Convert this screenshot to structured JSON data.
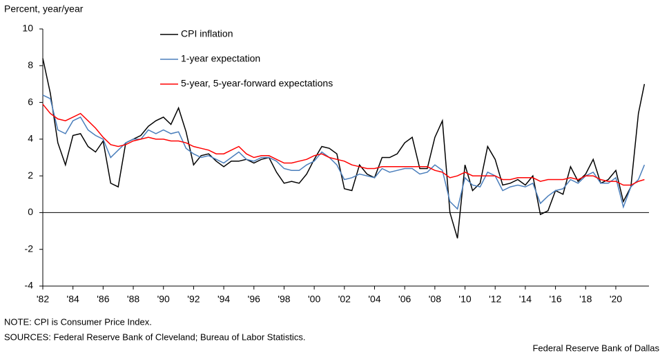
{
  "chart_data": {
    "type": "line",
    "y_label": "Percent, year/year",
    "notes": [
      "NOTE: CPI is Consumer Price Index.",
      "SOURCES: Federal Reserve Bank of Cleveland; Bureau of Labor Statistics."
    ],
    "credit": "Federal Reserve Bank of Dallas",
    "x": [
      1982.0,
      1982.5,
      1983.0,
      1983.5,
      1984.0,
      1984.5,
      1985.0,
      1985.5,
      1986.0,
      1986.5,
      1987.0,
      1987.5,
      1988.0,
      1988.5,
      1989.0,
      1989.5,
      1990.0,
      1990.5,
      1991.0,
      1991.5,
      1992.0,
      1992.5,
      1993.0,
      1993.5,
      1994.0,
      1994.5,
      1995.0,
      1995.5,
      1996.0,
      1996.5,
      1997.0,
      1997.5,
      1998.0,
      1998.5,
      1999.0,
      1999.5,
      2000.0,
      2000.5,
      2001.0,
      2001.5,
      2002.0,
      2002.5,
      2003.0,
      2003.5,
      2004.0,
      2004.5,
      2005.0,
      2005.5,
      2006.0,
      2006.5,
      2007.0,
      2007.5,
      2008.0,
      2008.5,
      2009.0,
      2009.5,
      2010.0,
      2010.5,
      2011.0,
      2011.5,
      2012.0,
      2012.5,
      2013.0,
      2013.5,
      2014.0,
      2014.5,
      2015.0,
      2015.5,
      2016.0,
      2016.5,
      2017.0,
      2017.5,
      2018.0,
      2018.5,
      2019.0,
      2019.5,
      2020.0,
      2020.5,
      2021.0,
      2021.5,
      2021.9
    ],
    "series": [
      {
        "name": "CPI inflation",
        "color": "#000000",
        "values": [
          8.4,
          6.5,
          3.8,
          2.6,
          4.2,
          4.3,
          3.6,
          3.3,
          3.9,
          1.6,
          1.4,
          3.8,
          4.0,
          4.2,
          4.7,
          5.0,
          5.2,
          4.8,
          5.7,
          4.4,
          2.6,
          3.1,
          3.2,
          2.8,
          2.5,
          2.8,
          2.8,
          2.9,
          2.7,
          2.9,
          3.0,
          2.2,
          1.6,
          1.7,
          1.6,
          2.1,
          2.9,
          3.6,
          3.5,
          3.2,
          1.3,
          1.2,
          2.6,
          2.1,
          1.9,
          3.0,
          3.0,
          3.2,
          3.8,
          4.1,
          2.4,
          2.4,
          4.1,
          5.0,
          0.0,
          -1.4,
          2.6,
          1.2,
          1.6,
          3.6,
          2.9,
          1.5,
          1.6,
          1.8,
          1.5,
          2.0,
          -0.1,
          0.1,
          1.2,
          1.0,
          2.5,
          1.7,
          2.1,
          2.9,
          1.6,
          1.8,
          2.3,
          0.6,
          1.4,
          5.4,
          7.0
        ]
      },
      {
        "name": "1-year expectation",
        "color": "#4a7ebb",
        "values": [
          6.4,
          6.2,
          4.5,
          4.3,
          5.0,
          5.2,
          4.5,
          4.2,
          4.0,
          3.0,
          3.4,
          3.8,
          4.0,
          4.0,
          4.5,
          4.3,
          4.5,
          4.3,
          4.4,
          3.5,
          3.2,
          3.0,
          3.1,
          2.9,
          2.7,
          3.0,
          3.3,
          2.9,
          2.8,
          3.0,
          3.0,
          2.8,
          2.4,
          2.3,
          2.3,
          2.6,
          2.8,
          3.3,
          3.0,
          2.6,
          1.8,
          1.9,
          2.1,
          2.0,
          1.9,
          2.4,
          2.2,
          2.3,
          2.4,
          2.4,
          2.1,
          2.2,
          2.6,
          2.3,
          0.6,
          0.2,
          1.9,
          1.5,
          1.4,
          2.2,
          2.0,
          1.2,
          1.4,
          1.5,
          1.4,
          1.6,
          0.5,
          0.9,
          1.2,
          1.3,
          1.8,
          1.6,
          2.0,
          2.2,
          1.6,
          1.6,
          1.9,
          0.3,
          1.4,
          1.8,
          2.6
        ]
      },
      {
        "name": "5-year, 5-year-forward expectations",
        "color": "#ff0000",
        "values": [
          5.9,
          5.4,
          5.1,
          5.0,
          5.2,
          5.4,
          5.0,
          4.6,
          4.1,
          3.7,
          3.6,
          3.7,
          3.9,
          4.0,
          4.1,
          4.0,
          4.0,
          3.9,
          3.9,
          3.8,
          3.6,
          3.5,
          3.4,
          3.2,
          3.2,
          3.4,
          3.6,
          3.2,
          3.0,
          3.1,
          3.1,
          2.9,
          2.7,
          2.7,
          2.8,
          2.9,
          3.1,
          3.2,
          3.0,
          2.9,
          2.8,
          2.6,
          2.5,
          2.4,
          2.4,
          2.5,
          2.5,
          2.5,
          2.5,
          2.5,
          2.5,
          2.5,
          2.3,
          2.2,
          1.9,
          2.0,
          2.2,
          2.0,
          2.0,
          2.0,
          2.0,
          1.8,
          1.8,
          1.9,
          1.9,
          1.9,
          1.7,
          1.8,
          1.8,
          1.8,
          1.9,
          1.8,
          2.0,
          2.0,
          1.8,
          1.7,
          1.7,
          1.5,
          1.5,
          1.7,
          1.8
        ]
      }
    ],
    "xlim": [
      1982,
      2022.2
    ],
    "xticks": [
      {
        "value": 1982,
        "label": "'82"
      },
      {
        "value": 1984,
        "label": "'84"
      },
      {
        "value": 1986,
        "label": "'86"
      },
      {
        "value": 1988,
        "label": "'88"
      },
      {
        "value": 1990,
        "label": "'90"
      },
      {
        "value": 1992,
        "label": "'92"
      },
      {
        "value": 1994,
        "label": "'94"
      },
      {
        "value": 1996,
        "label": "'96"
      },
      {
        "value": 1998,
        "label": "'98"
      },
      {
        "value": 2000,
        "label": "'00"
      },
      {
        "value": 2002,
        "label": "'02"
      },
      {
        "value": 2004,
        "label": "'04"
      },
      {
        "value": 2006,
        "label": "'06"
      },
      {
        "value": 2008,
        "label": "'08"
      },
      {
        "value": 2010,
        "label": "'10"
      },
      {
        "value": 2012,
        "label": "'12"
      },
      {
        "value": 2014,
        "label": "'14"
      },
      {
        "value": 2016,
        "label": "'16"
      },
      {
        "value": 2018,
        "label": "'18"
      },
      {
        "value": 2020,
        "label": "'20"
      }
    ],
    "ylim": [
      -4,
      10
    ],
    "yticks": [
      -4,
      -2,
      0,
      2,
      4,
      6,
      8,
      10
    ],
    "grid": false
  }
}
